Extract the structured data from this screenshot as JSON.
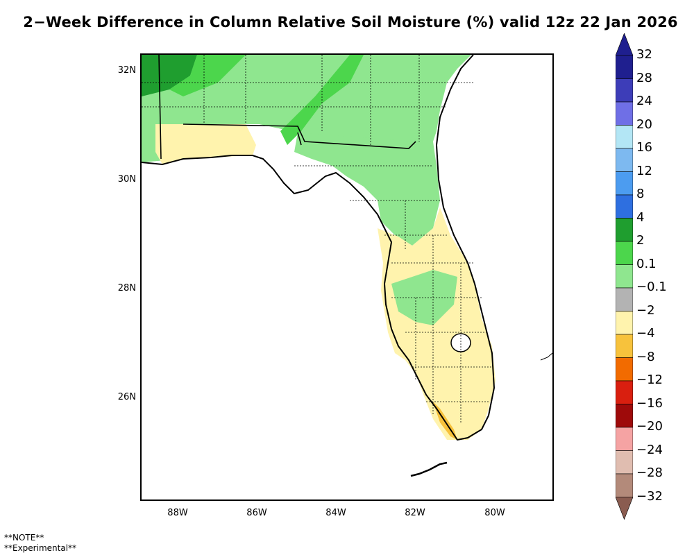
{
  "title": "2−Week Difference in Column Relative Soil Moisture (%) valid 12z 22 Jan 2026",
  "map": {
    "lat_ticks": [
      "32N",
      "30N",
      "28N",
      "26N"
    ],
    "lon_ticks": [
      "88W",
      "86W",
      "84W",
      "82W",
      "80W"
    ],
    "lon_range": [
      -88.9,
      -78.5
    ],
    "lat_range": [
      24.1,
      32.3
    ]
  },
  "colorbar": {
    "labels": [
      "32",
      "28",
      "24",
      "20",
      "16",
      "12",
      "8",
      "4",
      "2",
      "0.1",
      "−0.1",
      "−2",
      "−4",
      "−8",
      "−12",
      "−16",
      "−20",
      "−24",
      "−28",
      "−32"
    ],
    "colors": [
      "#1f1f8f",
      "#3d3db8",
      "#6f6fe6",
      "#b3e6f5",
      "#7db9f0",
      "#4c9cf0",
      "#2e6fe0",
      "#1f9e2f",
      "#4cd64c",
      "#8fe68f",
      "#b3b3b3",
      "#fff3ad",
      "#f7c23c",
      "#f26b00",
      "#d91f0f",
      "#9e0a0a",
      "#f5a3a3",
      "#e0bdb0",
      "#b38a7a",
      "#8a5c50"
    ]
  },
  "notes": [
    "**NOTE**",
    "**Experimental**"
  ]
}
